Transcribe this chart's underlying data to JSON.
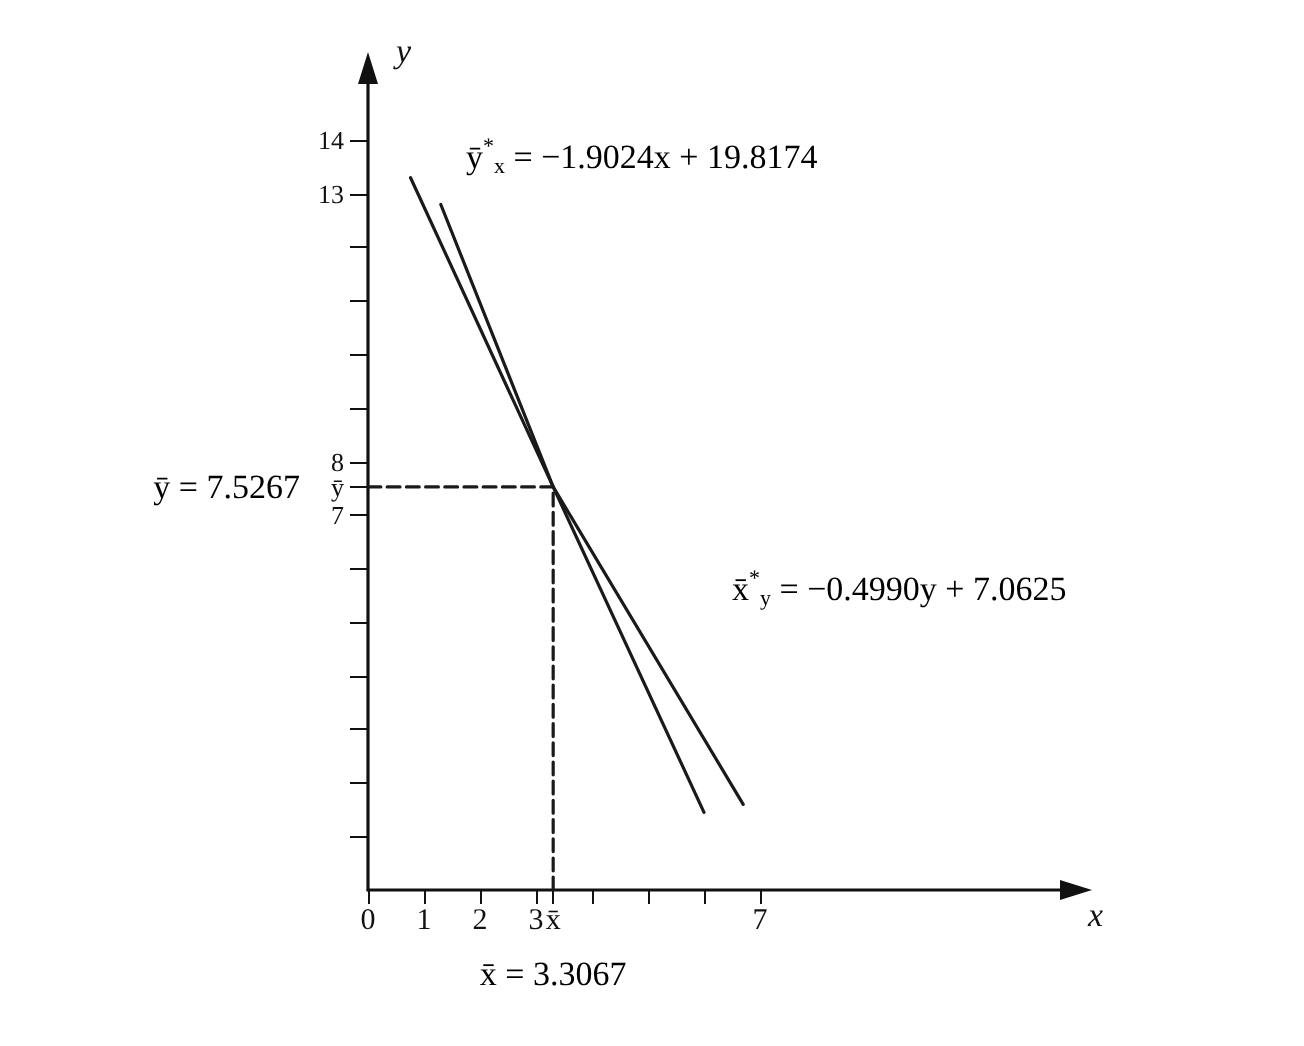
{
  "chart_data": {
    "type": "line",
    "xlabel": "x",
    "ylabel": "y",
    "xlim": [
      0,
      12.5
    ],
    "ylim": [
      0,
      15.2
    ],
    "xticks": [
      0,
      1,
      2,
      3,
      {
        "value": 3.3067,
        "label": "x̄"
      },
      {
        "value": 4,
        "label": null
      },
      {
        "value": 5,
        "label": null
      },
      {
        "value": 6,
        "label": null
      },
      7
    ],
    "yticks": [
      {
        "value": 1,
        "label": null
      },
      {
        "value": 2,
        "label": null
      },
      {
        "value": 3,
        "label": null
      },
      {
        "value": 4,
        "label": null
      },
      {
        "value": 5,
        "label": null
      },
      {
        "value": 6,
        "label": null
      },
      7,
      {
        "value": 7.5267,
        "label": "ȳ"
      },
      8,
      {
        "value": 9,
        "label": null
      },
      {
        "value": 10,
        "label": null
      },
      {
        "value": 11,
        "label": null
      },
      {
        "value": 12,
        "label": null
      },
      13,
      14
    ],
    "grid": false,
    "marker": "none",
    "series": [
      {
        "color": "#1a1a1a",
        "x": [
          1.3,
          3.3067,
          6.0
        ],
        "values": [
          12.8,
          7.5267,
          1.45
        ],
        "line_style": "solid"
      },
      {
        "color": "#1a1a1a",
        "x": [
          0.76,
          3.3067,
          6.7
        ],
        "values": [
          13.3,
          7.5267,
          1.6
        ],
        "line_style": "solid"
      },
      {
        "color": "#1a1a1a",
        "x": [
          0,
          3.3067
        ],
        "values": [
          7.5267,
          7.5267
        ],
        "line_style": "dashed"
      },
      {
        "color": "#1a1a1a",
        "x": [
          3.3067,
          3.3067
        ],
        "values": [
          0,
          7.5267
        ],
        "line_style": "dashed"
      }
    ],
    "annotations": [
      "ȳ$^{*}$$_{x}$ = −1.9024x + 19.8174",
      "x̄$^{*}$$_{y}$ = −0.4990y + 7.0625",
      {
        "text": "ȳ = 7.5267",
        "x": 0,
        "y": 7.5267
      },
      {
        "text": "x̄ = 3.3067",
        "x": 3.3067,
        "y": 0
      }
    ]
  }
}
